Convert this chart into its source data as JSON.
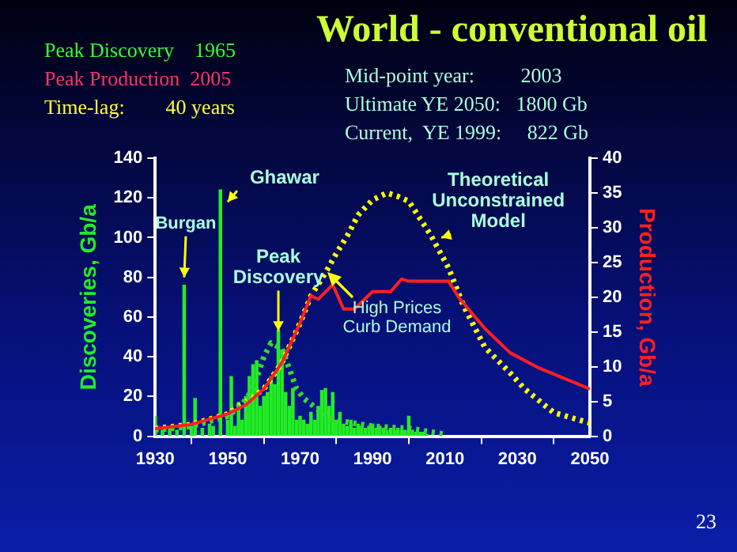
{
  "chart_data": {
    "type": "bar",
    "title": "World - conventional oil",
    "ylabel": "Discoveries, Gb/a",
    "y2label": "Production, Gb/a",
    "annotations": [
      "Peak Discovery    1965",
      "Peak Production  2005",
      "Time-lag:        40 years",
      "Mid-point year:         2003",
      "Ultimate YE 2050:   1800 Gb",
      "Current,  YE 1999:     822 Gb",
      "23",
      {
        "text": "Burgan",
        "x": 1938,
        "y": 80
      },
      {
        "text": "Ghawar",
        "x": 1950,
        "y": 118
      },
      {
        "text": "Peak Discovery",
        "x": 1964,
        "y": 53
      },
      "High Prices Curb Demand",
      {
        "text": "Theoretical Unconstrained Model",
        "x": 2009,
        "y": 100
      }
    ],
    "series": [
      {
        "color": "#22ee22",
        "x": [
          1930,
          1932,
          1934,
          1936,
          1938,
          1940,
          1941,
          1943,
          1945,
          1946,
          1948,
          1950,
          1951,
          1952,
          1953,
          1954,
          1955,
          1956,
          1957,
          1958,
          1959,
          1960,
          1961,
          1962,
          1963,
          1964,
          1965,
          1966,
          1967,
          1968,
          1969,
          1970,
          1971,
          1972,
          1973,
          1974,
          1975,
          1976,
          1977,
          1978,
          1979,
          1980,
          1981,
          1982,
          1983,
          1984,
          1985,
          1986,
          1987,
          1988,
          1989,
          1990,
          1991,
          1992,
          1993,
          1994,
          1995,
          1996,
          1997,
          1998,
          1999,
          2000,
          2001,
          2002,
          2003,
          2004,
          2005
        ],
        "values": [
          10,
          3,
          4,
          3,
          76,
          5,
          19,
          4,
          6,
          5,
          124,
          8,
          30,
          5,
          17,
          8,
          20,
          30,
          36,
          38,
          15,
          20,
          22,
          30,
          26,
          53,
          43,
          22,
          15,
          24,
          8,
          10,
          8,
          6,
          12,
          8,
          15,
          23,
          24,
          15,
          22,
          8,
          12,
          6,
          5,
          8,
          4,
          6,
          5,
          4,
          5,
          6,
          4,
          5,
          4,
          3,
          4,
          3,
          4,
          3,
          3,
          10,
          3,
          2,
          2,
          2,
          1
        ]
      },
      {
        "type": "line",
        "color": "#33dd33",
        "line_style": "dotted",
        "x": [
          1930,
          1940,
          1950,
          1954,
          1957,
          1960,
          1962,
          1965,
          1967,
          1969,
          1971,
          1976,
          1980,
          1990,
          2000,
          2010
        ],
        "values": [
          3,
          5,
          10,
          16,
          24,
          40,
          47,
          44,
          34,
          24,
          19,
          12,
          8,
          5,
          4,
          1
        ]
      },
      {
        "type": "line",
        "axis": "y2",
        "color": "#ff2020",
        "line_style": "solid",
        "x": [
          1930,
          1940,
          1950,
          1955,
          1960,
          1965,
          1970,
          1973,
          1975,
          1979,
          1982,
          1985,
          1990,
          1995,
          1998,
          2000,
          2011,
          2014,
          2021,
          2028,
          2036,
          2050
        ],
        "values": [
          1.1,
          1.7,
          3.2,
          4.5,
          6.8,
          10.6,
          16.3,
          20.2,
          19.7,
          21.8,
          18.3,
          18.3,
          20.8,
          20.8,
          22.6,
          22.3,
          22.3,
          19.8,
          15.5,
          12,
          9.8,
          6.8
        ]
      },
      {
        "type": "line",
        "axis": "y2",
        "color": "#ffff00",
        "line_style": "dotted",
        "x": [
          1930,
          1940,
          1950,
          1960,
          1965,
          1970,
          1973,
          1977,
          1980,
          1983,
          1986,
          1990,
          1994,
          1997,
          2000,
          2006,
          2011,
          2015,
          2021,
          2028,
          2032,
          2040,
          2050
        ],
        "values": [
          1.1,
          1.7,
          3.2,
          6.8,
          10.6,
          16.3,
          20.2,
          23.5,
          26.3,
          28.8,
          31.8,
          34,
          35,
          34.5,
          33.8,
          29,
          24.2,
          18.9,
          12.8,
          9.1,
          6.8,
          3.4,
          1.9
        ]
      }
    ],
    "xlim": [
      1930,
      2050
    ],
    "xticks": [
      1930,
      1950,
      1970,
      1990,
      2010,
      2030,
      2050
    ],
    "ylim": [
      0,
      140
    ],
    "yticks": [
      0,
      20,
      40,
      60,
      80,
      100,
      120,
      140
    ],
    "y2lim": [
      0,
      40
    ],
    "y2ticks": [
      0,
      5,
      10,
      15,
      20,
      25,
      30,
      35,
      40
    ],
    "grid": false,
    "legend": false,
    "marker": "none"
  }
}
